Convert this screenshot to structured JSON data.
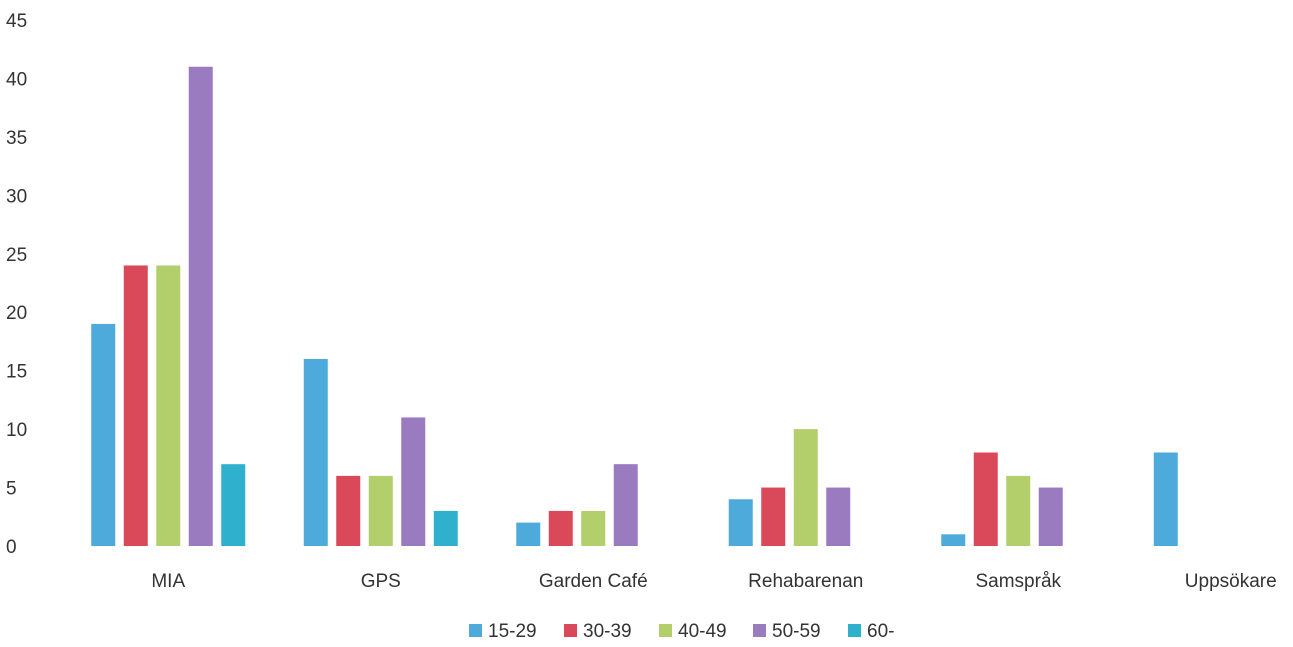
{
  "chart_data": {
    "type": "bar",
    "categories": [
      "MIA",
      "GPS",
      "Garden Café",
      "Rehabarenan",
      "Samspråk",
      "Uppsökare"
    ],
    "series": [
      {
        "name": "15-29",
        "color": "#4eaadb",
        "values": [
          19,
          16,
          2,
          4,
          1,
          8
        ]
      },
      {
        "name": "30-39",
        "color": "#d9495a",
        "values": [
          24,
          6,
          3,
          5,
          8,
          0
        ]
      },
      {
        "name": "40-49",
        "color": "#b3cf6b",
        "values": [
          24,
          6,
          3,
          10,
          6,
          0
        ]
      },
      {
        "name": "50-59",
        "color": "#9b7bbf",
        "values": [
          41,
          11,
          7,
          5,
          5,
          0
        ]
      },
      {
        "name": "60-",
        "color": "#2fb0cc",
        "values": [
          7,
          3,
          0,
          0,
          0,
          0
        ]
      }
    ],
    "yticks": [
      0,
      5,
      10,
      15,
      20,
      25,
      30,
      35,
      40,
      45
    ],
    "ylim": [
      0,
      45
    ],
    "grid": false,
    "legend_position": "bottom-center"
  }
}
